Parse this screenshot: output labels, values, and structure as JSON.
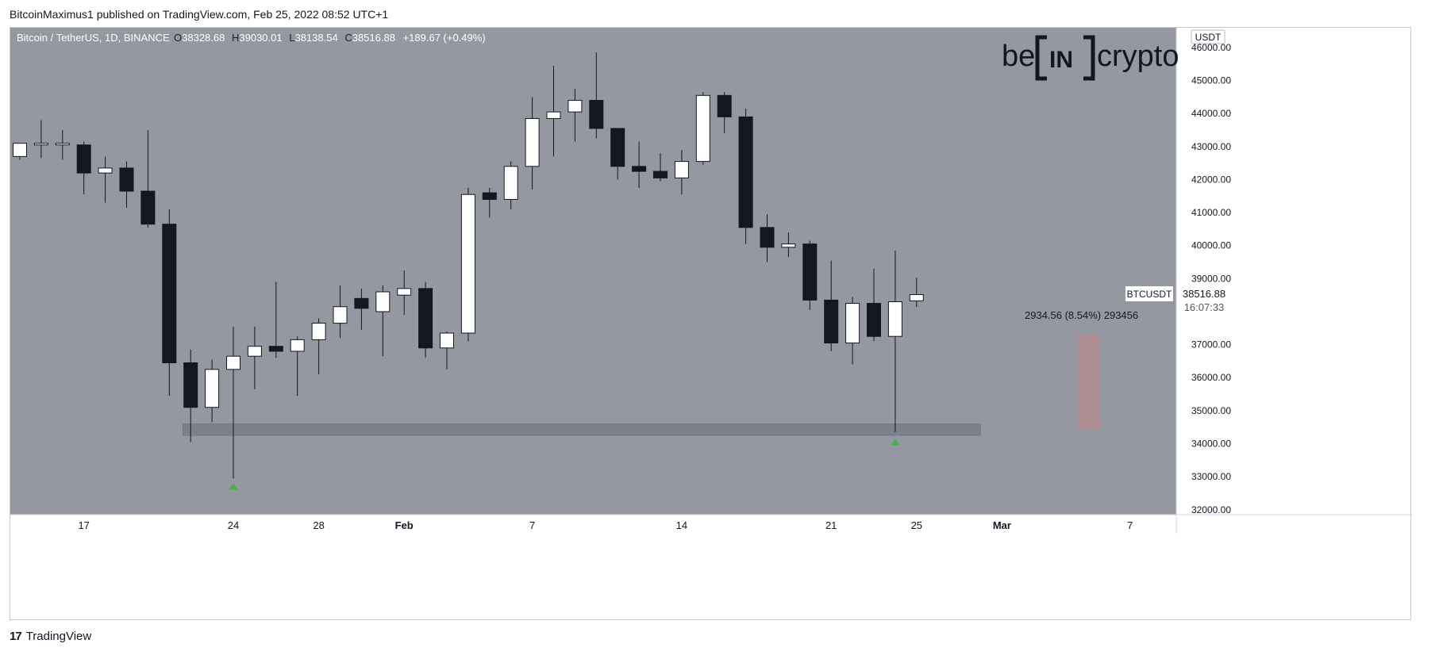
{
  "header": {
    "published_text": "BitcoinMaximus1 published on TradingView.com, Feb 25, 2022 08:52 UTC+1"
  },
  "legend": {
    "symbol": "Bitcoin / TetherUS, 1D, BINANCE",
    "open_label": "O",
    "open": "38328.68",
    "high_label": "H",
    "high": "39030.01",
    "low_label": "L",
    "low": "38138.54",
    "close_label": "C",
    "close": "38516.88",
    "change": "+189.67 (+0.49%)"
  },
  "logo": {
    "text_left": "be",
    "text_mid": "IN",
    "text_right": "crypto"
  },
  "price_scale": {
    "currency": "USDT",
    "last_symbol": "BTCUSDT",
    "last_price": "38516.88",
    "countdown": "16:07:33"
  },
  "measure": {
    "label": "2934.56 (8.54%) 293456",
    "from": 34450,
    "to": 37300
  },
  "support_zone": {
    "low": 34250,
    "high": 34600
  },
  "colors": {
    "plot_bg": "#9598a1",
    "up_body": "#ffffff",
    "down_body": "#131722",
    "wick": "#131722",
    "zone": "#787b86",
    "measure": "#b08b8f",
    "arrow": "#4caf50"
  },
  "chart_data": {
    "type": "candlestick",
    "symbol": "BTCUSDT",
    "timeframe": "1D",
    "ylim": [
      31850,
      46600
    ],
    "y_ticks": [
      32000,
      33000,
      34000,
      35000,
      36000,
      37000,
      38000,
      39000,
      40000,
      41000,
      42000,
      43000,
      44000,
      45000,
      46000
    ],
    "y_tick_labels": [
      "32000.00",
      "33000.00",
      "34000.00",
      "35000.00",
      "36000.00",
      "37000.00",
      "38000.00",
      "39000.00",
      "40000.00",
      "41000.00",
      "42000.00",
      "43000.00",
      "44000.00",
      "45000.00",
      "46000.00"
    ],
    "x_ticks": [
      {
        "label": "17",
        "idx": 3,
        "bold": false
      },
      {
        "label": "24",
        "idx": 10,
        "bold": false
      },
      {
        "label": "28",
        "idx": 14,
        "bold": false
      },
      {
        "label": "Feb",
        "idx": 18,
        "bold": true
      },
      {
        "label": "7",
        "idx": 24,
        "bold": false
      },
      {
        "label": "14",
        "idx": 31,
        "bold": false
      },
      {
        "label": "21",
        "idx": 38,
        "bold": false
      },
      {
        "label": "25",
        "idx": 42,
        "bold": false
      },
      {
        "label": "Mar",
        "idx": 46,
        "bold": true
      },
      {
        "label": "7",
        "idx": 52,
        "bold": false
      }
    ],
    "candles": [
      {
        "o": 42700,
        "h": 43100,
        "l": 42600,
        "c": 43100
      },
      {
        "o": 43050,
        "h": 43800,
        "l": 42650,
        "c": 43100
      },
      {
        "o": 43050,
        "h": 43500,
        "l": 42600,
        "c": 43100
      },
      {
        "o": 43050,
        "h": 43150,
        "l": 41550,
        "c": 42200
      },
      {
        "o": 42200,
        "h": 42700,
        "l": 41300,
        "c": 42350
      },
      {
        "o": 42350,
        "h": 42550,
        "l": 41150,
        "c": 41650
      },
      {
        "o": 41650,
        "h": 43500,
        "l": 40550,
        "c": 40650
      },
      {
        "o": 40650,
        "h": 41100,
        "l": 35450,
        "c": 36450
      },
      {
        "o": 36450,
        "h": 36850,
        "l": 34050,
        "c": 35100
      },
      {
        "o": 35100,
        "h": 36550,
        "l": 34650,
        "c": 36250
      },
      {
        "o": 36250,
        "h": 37550,
        "l": 32950,
        "c": 36650
      },
      {
        "o": 36650,
        "h": 37550,
        "l": 35650,
        "c": 36950
      },
      {
        "o": 36950,
        "h": 38900,
        "l": 36600,
        "c": 36800
      },
      {
        "o": 36800,
        "h": 37250,
        "l": 35450,
        "c": 37150
      },
      {
        "o": 37150,
        "h": 37800,
        "l": 36100,
        "c": 37650
      },
      {
        "o": 37650,
        "h": 38800,
        "l": 37200,
        "c": 38150
      },
      {
        "o": 38400,
        "h": 38700,
        "l": 37450,
        "c": 38100
      },
      {
        "o": 38000,
        "h": 38800,
        "l": 36650,
        "c": 38600
      },
      {
        "o": 38500,
        "h": 39250,
        "l": 37900,
        "c": 38700
      },
      {
        "o": 38700,
        "h": 38900,
        "l": 36600,
        "c": 36900
      },
      {
        "o": 36900,
        "h": 37400,
        "l": 36250,
        "c": 37350
      },
      {
        "o": 37350,
        "h": 41750,
        "l": 37100,
        "c": 41550
      },
      {
        "o": 41600,
        "h": 41750,
        "l": 40850,
        "c": 41400
      },
      {
        "o": 41400,
        "h": 42550,
        "l": 41100,
        "c": 42400
      },
      {
        "o": 42400,
        "h": 44500,
        "l": 41700,
        "c": 43850
      },
      {
        "o": 43850,
        "h": 45450,
        "l": 42700,
        "c": 44050
      },
      {
        "o": 44050,
        "h": 44750,
        "l": 43150,
        "c": 44400
      },
      {
        "o": 44400,
        "h": 45850,
        "l": 43250,
        "c": 43550
      },
      {
        "o": 43550,
        "h": 43550,
        "l": 42000,
        "c": 42400
      },
      {
        "o": 42400,
        "h": 43150,
        "l": 41750,
        "c": 42250
      },
      {
        "o": 42250,
        "h": 42800,
        "l": 41950,
        "c": 42050
      },
      {
        "o": 42050,
        "h": 42900,
        "l": 41550,
        "c": 42550
      },
      {
        "o": 42550,
        "h": 44650,
        "l": 42450,
        "c": 44550
      },
      {
        "o": 44550,
        "h": 44650,
        "l": 43400,
        "c": 43900
      },
      {
        "o": 43900,
        "h": 44150,
        "l": 40050,
        "c": 40550
      },
      {
        "o": 40550,
        "h": 40950,
        "l": 39500,
        "c": 39950
      },
      {
        "o": 39950,
        "h": 40400,
        "l": 39650,
        "c": 40050
      },
      {
        "o": 40050,
        "h": 40150,
        "l": 38050,
        "c": 38350
      },
      {
        "o": 38350,
        "h": 39550,
        "l": 36800,
        "c": 37050
      },
      {
        "o": 37050,
        "h": 38450,
        "l": 36400,
        "c": 38250
      },
      {
        "o": 38250,
        "h": 39300,
        "l": 37100,
        "c": 37250
      },
      {
        "o": 37250,
        "h": 39850,
        "l": 34350,
        "c": 38300
      },
      {
        "o": 38328.68,
        "h": 39030.01,
        "l": 38138.54,
        "c": 38516.88
      }
    ],
    "arrows": [
      {
        "idx": 10,
        "price": 32700
      },
      {
        "idx": 41,
        "price": 34050
      }
    ]
  }
}
